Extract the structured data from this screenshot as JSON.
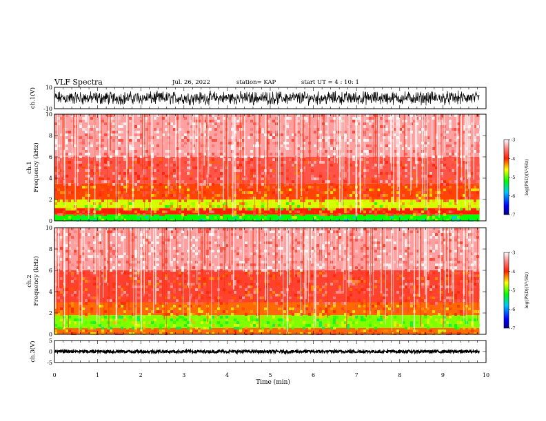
{
  "header": {
    "title": "VLF Spectra",
    "date": "Jul. 26, 2022",
    "station": "station= KAP",
    "start": "start UT =  4 : 10: 1"
  },
  "chart_data": [
    {
      "type": "line",
      "panel": "ch1-waveform",
      "ylabel": "ch.1(V)",
      "ylim": [
        -10,
        10
      ],
      "yticks": [
        "10",
        "-10"
      ],
      "xlim": [
        0,
        10
      ],
      "data_end_min": 9.85,
      "series": [
        {
          "description_only": false,
          "color": "#000000",
          "amplitude_range": [
            -8,
            8
          ]
        }
      ]
    },
    {
      "type": "heatmap",
      "panel": "ch1-spectrogram",
      "ylabel": "ch.1\nFrequency (kHz)",
      "ylim": [
        0,
        10
      ],
      "yticks": [
        "0",
        "2",
        "4",
        "6",
        "8",
        "10"
      ],
      "xlim": [
        0,
        10
      ],
      "data_end_min": 9.85,
      "bands": [
        {
          "from_khz": 0,
          "to_khz": 0.6,
          "level": -5.2
        },
        {
          "from_khz": 0.6,
          "to_khz": 1.2,
          "level": -4.0
        },
        {
          "from_khz": 1.2,
          "to_khz": 2.0,
          "level": -4.7
        },
        {
          "from_khz": 2.0,
          "to_khz": 3.5,
          "level": -4.1
        },
        {
          "from_khz": 3.5,
          "to_khz": 6.0,
          "level": -3.7
        },
        {
          "from_khz": 6.0,
          "to_khz": 10.0,
          "level": -3.35
        }
      ],
      "colorbar": {
        "label": "log(PSD)(V²/Hz)",
        "ticks": [
          "-3",
          "-4",
          "-5",
          "-6",
          "-7"
        ],
        "range": [
          -7,
          -3
        ]
      }
    },
    {
      "type": "heatmap",
      "panel": "ch2-spectrogram",
      "ylabel": "ch.2\nFrequency (kHz)",
      "ylim": [
        0,
        10
      ],
      "yticks": [
        "0",
        "2",
        "4",
        "6",
        "8",
        "10"
      ],
      "xlim": [
        0,
        10
      ],
      "data_end_min": 9.85,
      "bands": [
        {
          "from_khz": 0,
          "to_khz": 0.6,
          "level": -4.2
        },
        {
          "from_khz": 0.6,
          "to_khz": 1.8,
          "level": -4.9
        },
        {
          "from_khz": 1.8,
          "to_khz": 3.0,
          "level": -4.2
        },
        {
          "from_khz": 3.0,
          "to_khz": 6.0,
          "level": -3.8
        },
        {
          "from_khz": 6.0,
          "to_khz": 10.0,
          "level": -3.35
        }
      ],
      "colorbar": {
        "label": "log(PSD)(V²/Hz)",
        "ticks": [
          "-3",
          "-4",
          "-5",
          "-6",
          "-7"
        ],
        "range": [
          -7,
          -3
        ]
      }
    },
    {
      "type": "line",
      "panel": "ch3-waveform",
      "ylabel": "ch.3(V)",
      "ylim": [
        -5,
        5
      ],
      "yticks": [
        "5",
        "0",
        "-5"
      ],
      "xlim": [
        0,
        10
      ],
      "data_end_min": 9.85,
      "series": [
        {
          "color": "#000000",
          "amplitude_range": [
            -0.6,
            0.6
          ]
        }
      ]
    }
  ],
  "xaxis": {
    "label": "Time (min)",
    "ticks": [
      "0",
      "1",
      "2",
      "3",
      "4",
      "5",
      "6",
      "7",
      "8",
      "9",
      "10"
    ]
  },
  "colors": {
    "colormap": [
      "#00008b",
      "#0000ff",
      "#00c8ff",
      "#00ff00",
      "#ffff00",
      "#ff8000",
      "#ff0000",
      "#ffffff"
    ]
  }
}
